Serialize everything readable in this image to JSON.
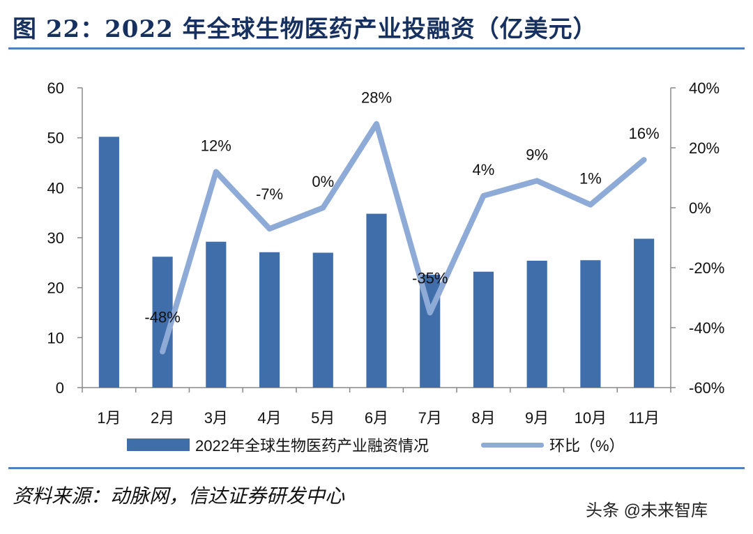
{
  "title": "图 22：2022 年全球生物医药产业投融资（亿美元）",
  "source": "资料来源：动脉网，信达证券研发中心",
  "watermark": "头条 @未来智库",
  "chart_data": {
    "type": "bar",
    "categories": [
      "1月",
      "2月",
      "3月",
      "4月",
      "5月",
      "6月",
      "7月",
      "8月",
      "9月",
      "10月",
      "11月"
    ],
    "series": [
      {
        "name": "2022年全球生物医药产业融资情况",
        "type": "bar",
        "axis": "left",
        "values": [
          50.2,
          26.2,
          29.2,
          27.1,
          27.0,
          34.8,
          22.6,
          23.2,
          25.4,
          25.5,
          29.8
        ],
        "color": "#3f6eab"
      },
      {
        "name": "环比（%）",
        "type": "line",
        "axis": "right",
        "values": [
          null,
          -48,
          12,
          -7,
          0,
          28,
          -35,
          4,
          9,
          1,
          16
        ],
        "labels": [
          null,
          "-48%",
          "12%",
          "-7%",
          "0%",
          "28%",
          "-35%",
          "4%",
          "9%",
          "1%",
          "16%"
        ],
        "color": "#8eaad6"
      }
    ],
    "ylim_left": [
      0,
      60
    ],
    "yticks_left": [
      "0",
      "10",
      "20",
      "30",
      "40",
      "50",
      "60"
    ],
    "ylim_right": [
      -60,
      40
    ],
    "yticks_right": [
      "-60%",
      "-40%",
      "-20%",
      "0%",
      "20%",
      "40%"
    ],
    "grid": false,
    "legend": "bottom"
  }
}
